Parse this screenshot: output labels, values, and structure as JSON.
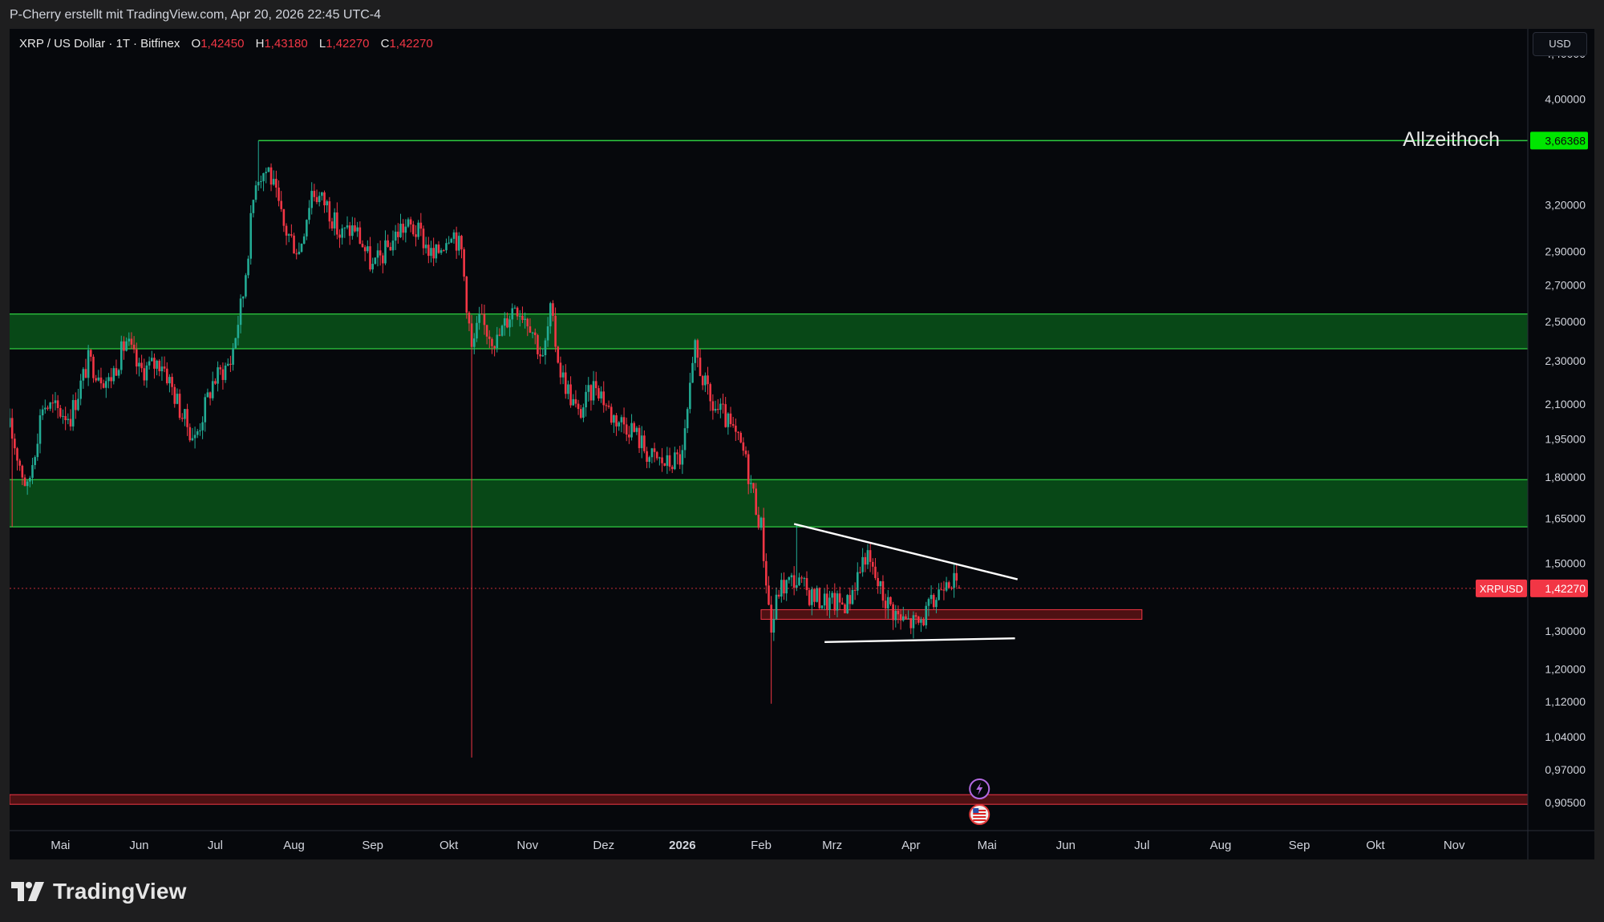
{
  "header": {
    "credit": "P-Cherry erstellt mit TradingView.com, Apr 20, 2026 22:45 UTC-4"
  },
  "legend": {
    "symbol": "XRP / US Dollar · 1T · Bitfinex",
    "open_label": "O",
    "open": "1,42450",
    "high_label": "H",
    "high": "1,43180",
    "low_label": "L",
    "low": "1,42270",
    "close_label": "C",
    "close": "1,42270"
  },
  "currency": "USD",
  "annotation_ath": "Allzeithoch",
  "brand": "TradingView",
  "colors": {
    "up": "#22ab94",
    "down": "#f23645",
    "zone_green": "#0a5d1b",
    "zone_green_border": "#2ecc40",
    "zone_red": "#8b1a1a",
    "price_tag": "#f23645",
    "ath_tag": "#00e600"
  },
  "chart_data": {
    "type": "candlestick",
    "symbol": "XRPUSD",
    "interval": "1T",
    "exchange": "Bitfinex",
    "y_scale": "log",
    "ylim": [
      0.86,
      4.6
    ],
    "x_range": [
      "2025-04-11",
      "2026-11-30"
    ],
    "x_ticks": [
      {
        "date": "2025-05-01",
        "label": "Mai"
      },
      {
        "date": "2025-06-01",
        "label": "Jun"
      },
      {
        "date": "2025-07-01",
        "label": "Jul"
      },
      {
        "date": "2025-08-01",
        "label": "Aug"
      },
      {
        "date": "2025-09-01",
        "label": "Sep"
      },
      {
        "date": "2025-10-01",
        "label": "Okt"
      },
      {
        "date": "2025-11-01",
        "label": "Nov"
      },
      {
        "date": "2025-12-01",
        "label": "Dez"
      },
      {
        "date": "2026-01-01",
        "label": "2026"
      },
      {
        "date": "2026-02-01",
        "label": "Feb"
      },
      {
        "date": "2026-03-01",
        "label": "Mrz"
      },
      {
        "date": "2026-04-01",
        "label": "Apr"
      },
      {
        "date": "2026-05-01",
        "label": "Mai"
      },
      {
        "date": "2026-06-01",
        "label": "Jun"
      },
      {
        "date": "2026-07-01",
        "label": "Jul"
      },
      {
        "date": "2026-08-01",
        "label": "Aug"
      },
      {
        "date": "2026-09-01",
        "label": "Sep"
      },
      {
        "date": "2026-10-01",
        "label": "Okt"
      },
      {
        "date": "2026-11-01",
        "label": "Nov"
      }
    ],
    "y_ticks": [
      {
        "value": 4.4,
        "label": "4,40000"
      },
      {
        "value": 4.0,
        "label": "4,00000"
      },
      {
        "value": 3.2,
        "label": "3,20000"
      },
      {
        "value": 2.9,
        "label": "2,90000"
      },
      {
        "value": 2.7,
        "label": "2,70000"
      },
      {
        "value": 2.5,
        "label": "2,50000"
      },
      {
        "value": 2.3,
        "label": "2,30000"
      },
      {
        "value": 2.1,
        "label": "2,10000"
      },
      {
        "value": 1.95,
        "label": "1,95000"
      },
      {
        "value": 1.8,
        "label": "1,80000"
      },
      {
        "value": 1.65,
        "label": "1,65000"
      },
      {
        "value": 1.5,
        "label": "1,50000"
      },
      {
        "value": 1.3,
        "label": "1,30000"
      },
      {
        "value": 1.2,
        "label": "1,20000"
      },
      {
        "value": 1.12,
        "label": "1,12000"
      },
      {
        "value": 1.04,
        "label": "1,04000"
      },
      {
        "value": 0.97,
        "label": "0,97000"
      },
      {
        "value": 0.905,
        "label": "0,90500"
      }
    ],
    "path": [
      [
        "2025-04-11",
        2.0
      ],
      [
        "2025-04-18",
        1.75
      ],
      [
        "2025-04-24",
        2.1
      ],
      [
        "2025-05-05",
        2.05
      ],
      [
        "2025-05-12",
        2.3
      ],
      [
        "2025-05-20",
        2.2
      ],
      [
        "2025-05-27",
        2.4
      ],
      [
        "2025-06-01",
        2.25
      ],
      [
        "2025-06-10",
        2.3
      ],
      [
        "2025-06-18",
        2.05
      ],
      [
        "2025-06-23",
        1.95
      ],
      [
        "2025-06-30",
        2.2
      ],
      [
        "2025-07-07",
        2.3
      ],
      [
        "2025-07-12",
        2.65
      ],
      [
        "2025-07-17",
        3.4
      ],
      [
        "2025-07-22",
        3.45
      ],
      [
        "2025-07-28",
        3.05
      ],
      [
        "2025-08-03",
        2.9
      ],
      [
        "2025-08-08",
        3.3
      ],
      [
        "2025-08-14",
        3.2
      ],
      [
        "2025-08-19",
        3.0
      ],
      [
        "2025-08-25",
        3.05
      ],
      [
        "2025-09-01",
        2.8
      ],
      [
        "2025-09-06",
        2.9
      ],
      [
        "2025-09-12",
        3.05
      ],
      [
        "2025-09-16",
        3.05
      ],
      [
        "2025-09-20",
        3.0
      ],
      [
        "2025-09-25",
        2.85
      ],
      [
        "2025-10-02",
        3.05
      ],
      [
        "2025-10-06",
        2.9
      ],
      [
        "2025-10-10",
        2.35
      ],
      [
        "2025-10-13",
        2.5
      ],
      [
        "2025-10-20",
        2.4
      ],
      [
        "2025-10-27",
        2.6
      ],
      [
        "2025-11-02",
        2.5
      ],
      [
        "2025-11-07",
        2.3
      ],
      [
        "2025-11-10",
        2.55
      ],
      [
        "2025-11-14",
        2.25
      ],
      [
        "2025-11-21",
        2.05
      ],
      [
        "2025-11-28",
        2.2
      ],
      [
        "2025-12-04",
        2.05
      ],
      [
        "2025-12-12",
        2.0
      ],
      [
        "2025-12-19",
        1.88
      ],
      [
        "2025-12-26",
        1.85
      ],
      [
        "2026-01-01",
        1.88
      ],
      [
        "2026-01-06",
        2.35
      ],
      [
        "2026-01-12",
        2.1
      ],
      [
        "2026-01-17",
        2.05
      ],
      [
        "2026-01-25",
        1.9
      ],
      [
        "2026-02-01",
        1.62
      ],
      [
        "2026-02-05",
        1.3
      ],
      [
        "2026-02-08",
        1.42
      ],
      [
        "2026-02-14",
        1.45
      ],
      [
        "2026-02-21",
        1.4
      ],
      [
        "2026-02-28",
        1.38
      ],
      [
        "2026-03-07",
        1.38
      ],
      [
        "2026-03-14",
        1.53
      ],
      [
        "2026-03-21",
        1.4
      ],
      [
        "2026-03-28",
        1.33
      ],
      [
        "2026-04-04",
        1.32
      ],
      [
        "2026-04-10",
        1.38
      ],
      [
        "2026-04-15",
        1.47
      ],
      [
        "2026-04-20",
        1.4227
      ]
    ],
    "current_price": {
      "value": 1.4227,
      "symbol_label": "XRPUSD",
      "label": "1,42270"
    },
    "all_time_high": {
      "value": 3.66368,
      "label": "3,66368",
      "date": "2025-07-18"
    },
    "support_resistance_zones": [
      {
        "low": 2.36,
        "high": 2.54,
        "color": "green"
      },
      {
        "low": 1.62,
        "high": 1.79,
        "color": "green"
      },
      {
        "low": 1.34,
        "high": 1.36,
        "color": "red",
        "from": "2026-02-01",
        "to": "2026-07-01"
      },
      {
        "low": 0.905,
        "high": 0.92,
        "color": "red"
      }
    ],
    "trendlines": [
      {
        "from": [
          "2026-02-14",
          1.63
        ],
        "to": [
          "2026-05-13",
          1.45
        ]
      },
      {
        "from": [
          "2026-02-26",
          1.27
        ],
        "to": [
          "2026-05-12",
          1.28
        ]
      }
    ]
  }
}
